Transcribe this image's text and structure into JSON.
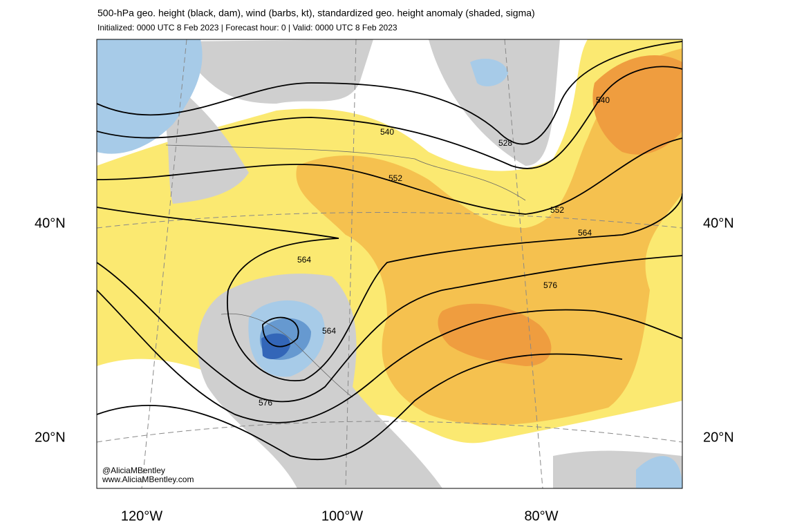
{
  "header": {
    "title": "500-hPa geo. height (black, dam), wind (barbs, kt), standardized geo. height anomaly (shaded, sigma)",
    "subtitle": "Initialized: 0000 UTC 8 Feb 2023 | Forecast hour: 0 | Valid: 0000 UTC 8 Feb 2023"
  },
  "map": {
    "lat_labels": [
      "40°N",
      "20°N"
    ],
    "lon_labels": [
      "120°W",
      "100°W",
      "80°W"
    ],
    "contour_labels": [
      540,
      528,
      540,
      552,
      552,
      564,
      564,
      564,
      576,
      576
    ]
  },
  "credits": [
    "@AliciaMBentley",
    "www.AliciaMBentley.com"
  ]
}
